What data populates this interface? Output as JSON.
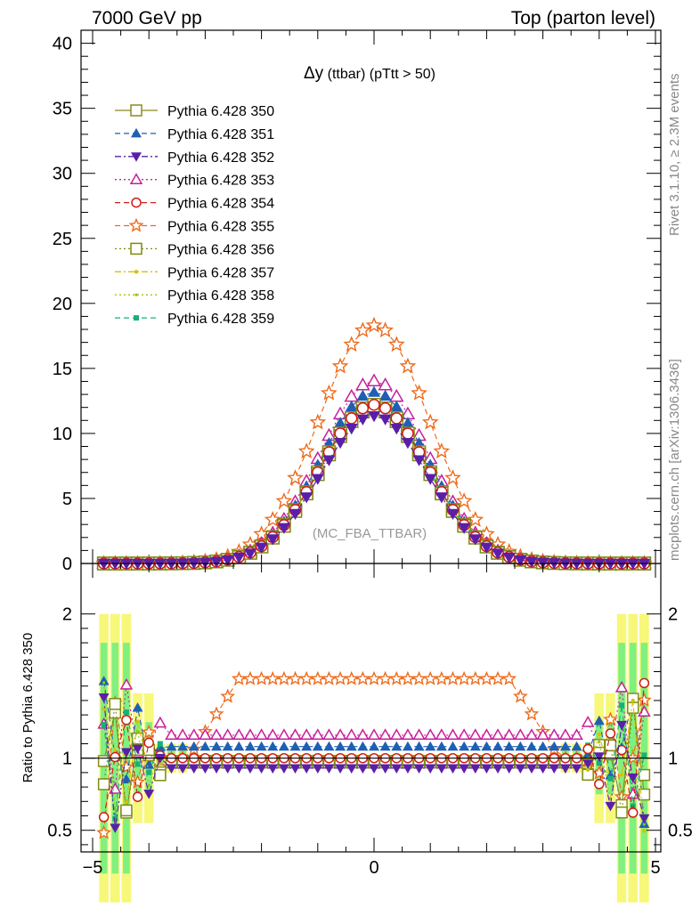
{
  "header": {
    "left": "7000 GeV pp",
    "right": "Top (parton level)"
  },
  "side_labels": {
    "rivet": "Rivet 3.1.10, ≥ 2.3M events",
    "mcplots": "mcplots.cern.ch [arXiv:1306.3436]"
  },
  "chart_data": [
    {
      "type": "scatter",
      "title": "Δy (ttbar) (pTtt > 50)",
      "title_main": "Δy",
      "title_rest": " (ttbar) (pTtt > 50)",
      "watermark": "(MC_FBA_TTBAR)",
      "xlabel": "",
      "ylabel": "",
      "xlim": [
        -5,
        5
      ],
      "ylim": [
        0,
        41
      ],
      "yticks": [
        0,
        5,
        10,
        15,
        20,
        25,
        30,
        35,
        40
      ],
      "ytick_labels": [
        "0",
        "5",
        "10",
        "15",
        "20",
        "25",
        "30",
        "35",
        "40"
      ],
      "grid": false,
      "legend_position": "top-left",
      "x": [
        -4.8,
        -4.6,
        -4.4,
        -4.2,
        -4.0,
        -3.8,
        -3.6,
        -3.4,
        -3.2,
        -3.0,
        -2.8,
        -2.6,
        -2.4,
        -2.2,
        -2.0,
        -1.8,
        -1.6,
        -1.4,
        -1.2,
        -1.0,
        -0.8,
        -0.6,
        -0.4,
        -0.2,
        0.0,
        0.2,
        0.4,
        0.6,
        0.8,
        1.0,
        1.2,
        1.4,
        1.6,
        1.8,
        2.0,
        2.2,
        2.4,
        2.6,
        2.8,
        3.0,
        3.2,
        3.4,
        3.6,
        3.8,
        4.0,
        4.2,
        4.4,
        4.6,
        4.8
      ],
      "reference_peak": 12.2,
      "reference_width": 0.95,
      "series": [
        {
          "name": "Pythia 6.428 350",
          "color": "#8b8b1f",
          "marker": "square-open",
          "dash": "solid",
          "scale": 1.0
        },
        {
          "name": "Pythia 6.428 351",
          "color": "#1f5fb4",
          "marker": "triangle-up-filled",
          "dash": "dashed",
          "scale": 1.08
        },
        {
          "name": "Pythia 6.428 352",
          "color": "#5a1fa8",
          "marker": "triangle-down-filled",
          "dash": "dashdot",
          "scale": 0.93
        },
        {
          "name": "Pythia 6.428 353",
          "color": "#c71f9c",
          "marker": "triangle-up-open",
          "dash": "dotted",
          "scale": 1.15
        },
        {
          "name": "Pythia 6.428 354",
          "color": "#d11a1a",
          "marker": "circle-open",
          "dash": "dashed",
          "scale": 1.0
        },
        {
          "name": "Pythia 6.428 355",
          "color": "#ee6a1a",
          "marker": "star-open",
          "dash": "dashed",
          "scale": 1.5
        },
        {
          "name": "Pythia 6.428 356",
          "color": "#7d8c10",
          "marker": "square-open",
          "dash": "dotted",
          "scale": 0.98
        },
        {
          "name": "Pythia 6.428 357",
          "color": "#d4c10a",
          "marker": "dot-small",
          "dash": "dashdot",
          "scale": 0.99
        },
        {
          "name": "Pythia 6.428 358",
          "color": "#99c40c",
          "marker": "dot-tiny",
          "dash": "dotted",
          "scale": 0.99
        },
        {
          "name": "Pythia 6.428 359",
          "color": "#17b079",
          "marker": "square-filled-small",
          "dash": "dashed",
          "scale": 1.01
        }
      ]
    },
    {
      "type": "scatter",
      "title": "",
      "xlabel": "",
      "ylabel": "Ratio to Pythia 6.428 350",
      "xlim": [
        -5,
        5
      ],
      "ylim": [
        0.35,
        2.35
      ],
      "yticks": [
        0.5,
        1,
        2
      ],
      "ytick_labels": [
        "0.5",
        "1",
        "2"
      ],
      "xticks": [
        -5,
        0,
        5
      ],
      "xtick_labels": [
        "−5",
        "0",
        "5"
      ],
      "grid": false,
      "reference_line": 1,
      "uncertainty_band_colors": {
        "inner": "#80f080",
        "outer": "#f7f77a"
      },
      "ratio_series_plateau": {
        "Pythia 6.428 350": 0.98,
        "Pythia 6.428 351": 1.08,
        "Pythia 6.428 352": 0.93,
        "Pythia 6.428 353": 1.16,
        "Pythia 6.428 354": 1.0,
        "Pythia 6.428 355": 1.55,
        "Pythia 6.428 356": 0.97,
        "Pythia 6.428 357": 0.99,
        "Pythia 6.428 358": 0.99,
        "Pythia 6.428 359": 1.01
      }
    }
  ]
}
